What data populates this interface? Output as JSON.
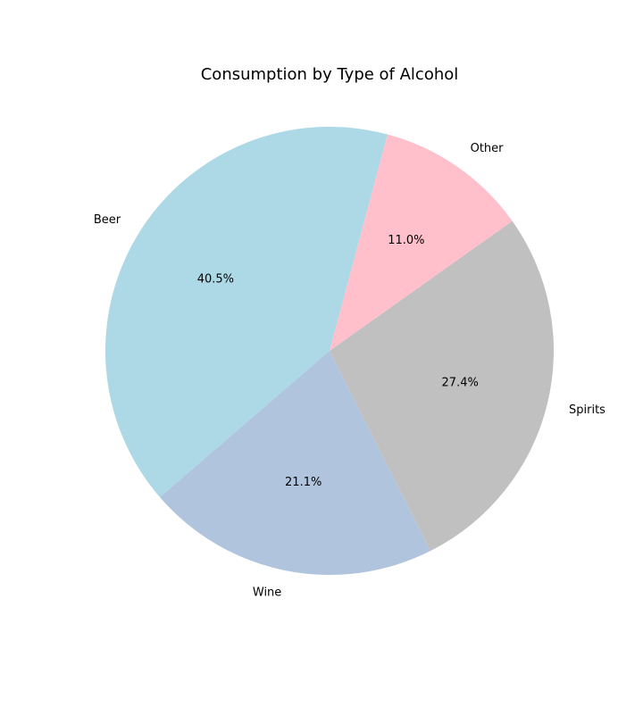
{
  "chart_data": {
    "type": "pie",
    "title": "Consumption by Type of Alcohol",
    "categories": [
      "Beer",
      "Wine",
      "Spirits",
      "Other"
    ],
    "values": [
      40.5,
      21.1,
      27.4,
      11.0
    ],
    "percent_labels": [
      "40.5%",
      "21.1%",
      "27.4%",
      "11.0%"
    ],
    "colors": [
      "#add8e6",
      "#b0c4de",
      "#c0c0c0",
      "#ffc0cb"
    ],
    "start_angle_deg": 75,
    "direction": "counterclockwise"
  }
}
